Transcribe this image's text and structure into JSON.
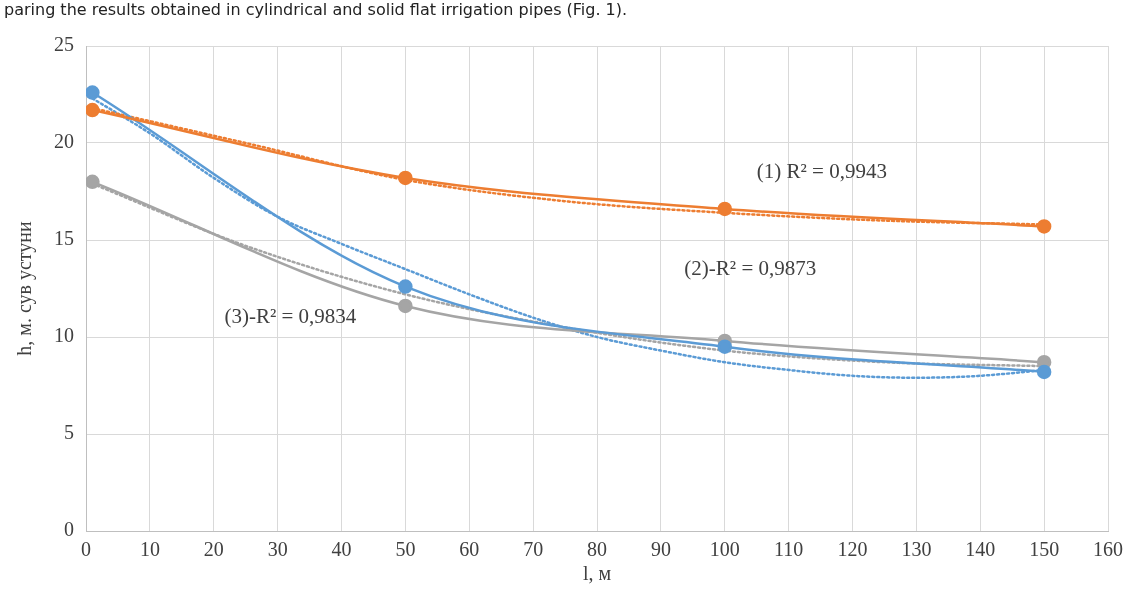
{
  "chart_data": {
    "type": "line",
    "xlabel": "l, м",
    "ylabel": "h, м. сув устуни",
    "x": [
      1,
      50,
      100,
      150
    ],
    "series": [
      {
        "color": "#ed7d31",
        "values": [
          21.7,
          18.2,
          16.6,
          15.7
        ]
      },
      {
        "color": "#5b9bd5",
        "values": [
          22.6,
          12.6,
          9.5,
          8.2
        ]
      },
      {
        "color": "#a5a5a5",
        "values": [
          18.0,
          11.6,
          9.8,
          8.7
        ]
      },
      {
        "color": "#ed7d31",
        "line_style": "dotted",
        "marker": "none",
        "x": [
          1,
          25,
          50,
          75,
          100,
          125,
          150
        ],
        "values": [
          21.8,
          20.0,
          18.1,
          17.0,
          16.4,
          16.0,
          15.8
        ]
      },
      {
        "color": "#5b9bd5",
        "line_style": "dotted",
        "marker": "none",
        "x": [
          1,
          10,
          20,
          30,
          40,
          50,
          60,
          70,
          80,
          90,
          100,
          110,
          120,
          130,
          140,
          150
        ],
        "values": [
          22.3,
          20.5,
          18.2,
          16.2,
          14.8,
          13.5,
          12.2,
          11.0,
          10.0,
          9.3,
          8.7,
          8.3,
          8.0,
          7.9,
          8.0,
          8.3
        ]
      },
      {
        "color": "#a5a5a5",
        "line_style": "dotted",
        "marker": "none",
        "x": [
          1,
          25,
          50,
          75,
          100,
          125,
          150
        ],
        "values": [
          17.9,
          14.7,
          12.2,
          10.5,
          9.3,
          8.7,
          8.5
        ]
      }
    ],
    "marker": "circle",
    "line_style": "solid",
    "xlim": [
      0,
      160
    ],
    "xticks": [
      0,
      10,
      20,
      30,
      40,
      50,
      60,
      70,
      80,
      90,
      100,
      110,
      120,
      130,
      140,
      150,
      160
    ],
    "ylim": [
      0,
      25
    ],
    "yticks": [
      0,
      5,
      10,
      15,
      20,
      25
    ],
    "grid": true,
    "legend": false,
    "annotations": [
      "paring the results obtained in cylindrical and solid flat irrigation pipes (Fig. 1).",
      "(1) R² = 0,9943",
      "(2)-R² = 0,9873",
      "(3)-R² = 0,9834"
    ]
  }
}
